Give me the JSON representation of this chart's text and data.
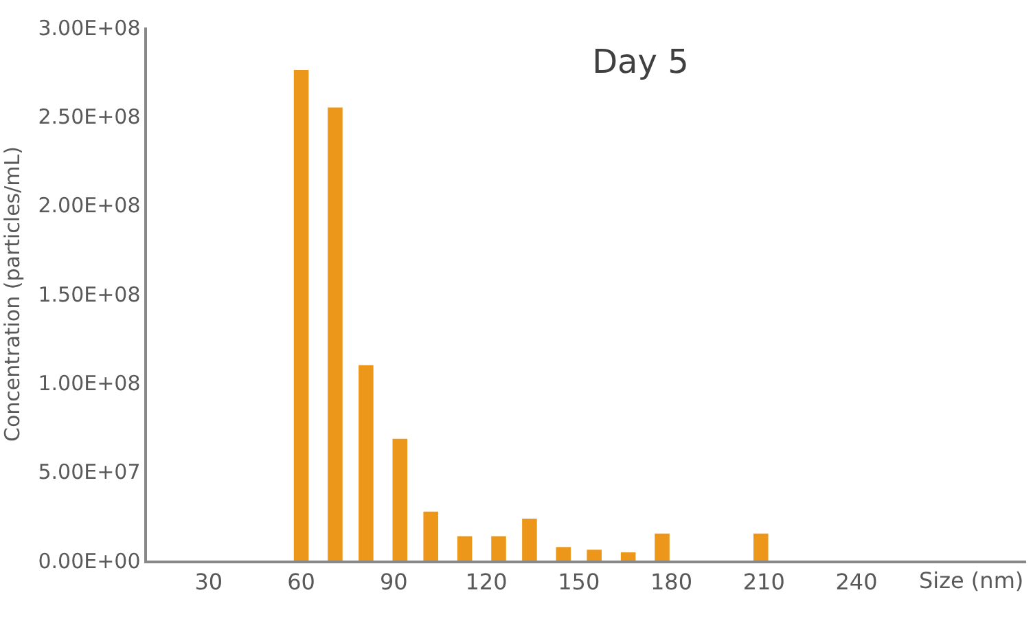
{
  "chart_data": {
    "type": "bar",
    "title": "Day 5",
    "xlabel": "Size (nm)",
    "ylabel": "Concentration (particles/mL)",
    "x": [
      60,
      71,
      81,
      92,
      102,
      113,
      124,
      134,
      145,
      155,
      166,
      177,
      209
    ],
    "values": [
      276000000,
      255000000,
      110000000,
      68500000,
      27500000,
      13700000,
      13700000,
      23600000,
      7600000,
      6100000,
      4600000,
      15200000,
      15200000
    ],
    "color": "#ec971a",
    "xlim": [
      10,
      295
    ],
    "xticks": [
      30,
      60,
      90,
      120,
      150,
      180,
      210,
      240
    ],
    "ylim": [
      0,
      300000000
    ],
    "yticks": [
      {
        "value": 0,
        "label": "0.00E+00"
      },
      {
        "value": 50000000,
        "label": "5.00E+07"
      },
      {
        "value": 100000000,
        "label": "1.00E+08"
      },
      {
        "value": 150000000,
        "label": "1.50E+08"
      },
      {
        "value": 200000000,
        "label": "2.00E+08"
      },
      {
        "value": 250000000,
        "label": "2.50E+08"
      },
      {
        "value": 300000000,
        "label": "3.00E+08"
      }
    ]
  }
}
